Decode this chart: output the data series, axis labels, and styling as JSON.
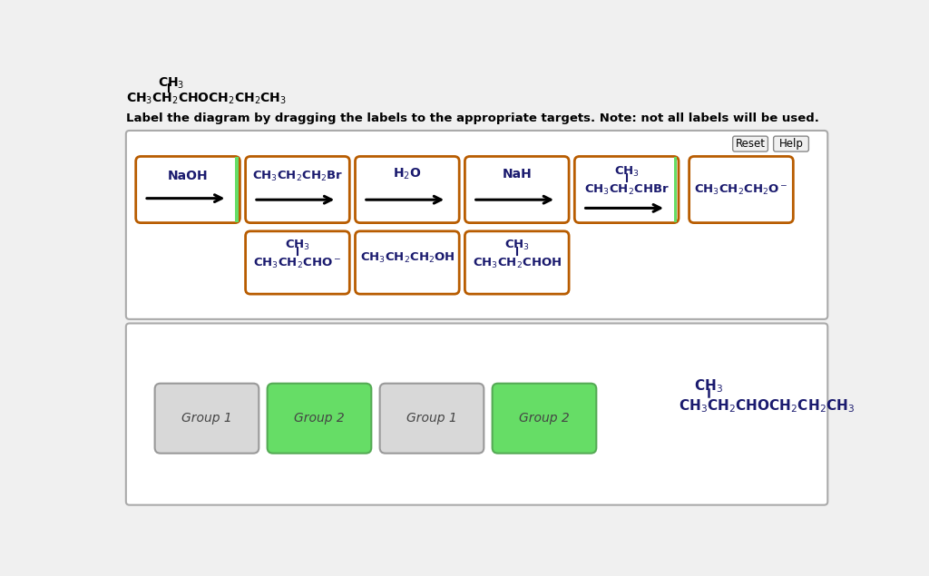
{
  "bg_color": "#f0f0f0",
  "panel_bg": "#ffffff",
  "orange_border": "#b85c00",
  "green_fill": "#66dd66",
  "gray_fill": "#d8d8d8",
  "green_border": "#55aa55",
  "gray_border": "#999999",
  "dark_panel_border": "#888888",
  "text_color": "#1a1a6e",
  "black": "#000000",
  "instruction": "Label the diagram by dragging the labels to the appropriate targets. Note: not all labels will be used.",
  "top_row": [
    {
      "type": "naoh"
    },
    {
      "type": "reagent_arrow",
      "top": "CH$_3$CH$_2$CH$_2$Br",
      "green_right": true
    },
    {
      "type": "reagent_arrow",
      "top": "H$_2$O"
    },
    {
      "type": "reagent_arrow",
      "top": "NaH"
    },
    {
      "type": "branch_arrow",
      "branch": "CH$_3$",
      "main": "CH$_3$CH$_2$CHBr",
      "green_right": true
    },
    {
      "type": "text_only",
      "line1": "CH$_3$CH$_2$CH$_2$O$^-$"
    }
  ],
  "bottom_row": [
    {
      "type": "branch_text",
      "branch": "CH$_3$",
      "main": "CH$_3$CH$_2$CHO$^-$"
    },
    {
      "type": "text_only",
      "line1": "CH$_3$CH$_2$CH$_2$OH"
    },
    {
      "type": "branch_text",
      "branch": "CH$_3$",
      "main": "CH$_3$CH$_2$CHOH"
    }
  ],
  "group_boxes": [
    {
      "label": "Group 1",
      "fill": "#d8d8d8",
      "border": "#999999"
    },
    {
      "label": "Group 2",
      "fill": "#66dd66",
      "border": "#55aa55"
    },
    {
      "label": "Group 1",
      "fill": "#d8d8d8",
      "border": "#999999"
    },
    {
      "label": "Group 2",
      "fill": "#66dd66",
      "border": "#55aa55"
    }
  ]
}
